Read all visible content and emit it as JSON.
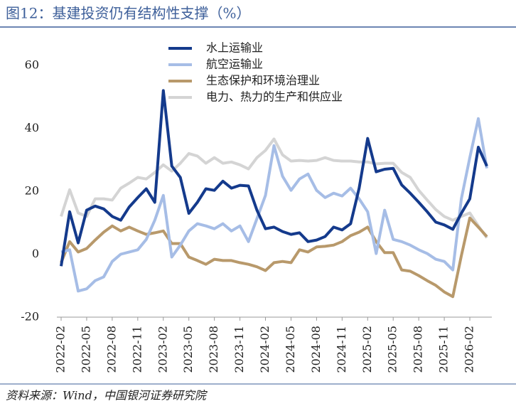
{
  "chart_data": {
    "type": "line",
    "title": "图12：基建投资仍有结构性支撑（%）",
    "source": "资料来源：Wind，中国银河证券研究院",
    "categories": [
      "2022-02",
      null,
      null,
      "2022-05",
      null,
      null,
      "2022-08",
      null,
      null,
      "2022-11",
      null,
      null,
      "2023-02",
      null,
      null,
      "2023-05",
      null,
      null,
      "2023-08",
      null,
      null,
      "2023-11",
      null,
      null,
      "2024-02",
      null,
      null,
      "2024-05",
      null,
      null,
      "2024-08",
      null,
      null,
      "2024-11",
      null,
      null,
      "2025-02",
      null,
      null,
      "2025-05",
      null,
      null,
      "2025-08",
      null,
      null,
      "2025-11",
      null,
      null,
      "2026-02",
      null,
      null
    ],
    "ylim": [
      -20,
      60
    ],
    "yticks": [
      -20,
      0,
      20,
      40,
      60
    ],
    "grid": false,
    "legend": "top",
    "series": [
      {
        "name": "水上运输业",
        "color": "#143a8c",
        "values": [
          -3.8,
          13.5,
          3.6,
          14,
          15.3,
          14.4,
          12,
          10.8,
          15,
          18,
          20.8,
          16.5,
          52,
          28,
          24.4,
          13,
          16.5,
          20.8,
          20.3,
          23.2,
          21,
          21.9,
          21.7,
          14,
          8.1,
          8.6,
          7.2,
          6.3,
          6.8,
          4,
          4.5,
          5.6,
          8.6,
          7.7,
          9.7,
          21,
          36.8,
          26.2,
          27,
          27.3,
          22,
          19.4,
          16.5,
          13.5,
          10.2,
          9.3,
          7.9,
          13,
          17.6,
          34,
          28
        ]
      },
      {
        "name": "航空运输业",
        "color": "#a6bde6",
        "values": [
          0.7,
          1.4,
          -11.7,
          -11,
          -8.4,
          -7.2,
          -2.3,
          0,
          0.7,
          1.4,
          4.7,
          10.8,
          18.7,
          -0.9,
          2.9,
          7.4,
          9.7,
          9,
          8.1,
          9.7,
          7.4,
          9,
          4,
          11.3,
          18.7,
          34.5,
          24.8,
          20.3,
          23.9,
          25.5,
          20.3,
          18,
          19.4,
          18.5,
          21,
          17.6,
          13.5,
          0.2,
          14,
          4.7,
          4,
          2.9,
          1.4,
          0.2,
          -1.6,
          -2.3,
          -5,
          17.6,
          30.7,
          43.1,
          27.3
        ]
      },
      {
        "name": "生态保护和环境治理业",
        "color": "#b8996b",
        "values": [
          -2.7,
          4,
          0.7,
          1.8,
          4.5,
          7,
          9,
          7.4,
          8.6,
          7.4,
          6.3,
          6.8,
          7.4,
          3.4,
          3.4,
          -0.9,
          -2,
          -3.2,
          -1.6,
          -2,
          -2,
          -2.7,
          -3.2,
          -4,
          -5.2,
          -2.7,
          -2.3,
          -2.7,
          1.4,
          0.7,
          2.3,
          2.5,
          2.9,
          4,
          5.9,
          7,
          8.6,
          4,
          0.5,
          0.5,
          -5,
          -5.4,
          -6.8,
          -8.4,
          -9.9,
          -12,
          -13.5,
          -0.5,
          11.5,
          8.6,
          5.6
        ]
      },
      {
        "name": "电力、热力的生产和供应业",
        "color": "#d4d4d4",
        "values": [
          12,
          20.5,
          13.1,
          12,
          17.6,
          17.6,
          17.2,
          21,
          22.6,
          24.4,
          23.9,
          26,
          28.4,
          26.4,
          28.9,
          32,
          31.2,
          28.9,
          30.7,
          28.9,
          29.3,
          28.4,
          27.1,
          30.7,
          33,
          36.6,
          31.6,
          29.6,
          29.8,
          29.6,
          29.8,
          30.7,
          29.8,
          29.6,
          29.6,
          29.3,
          29.3,
          28.7,
          28.9,
          28.9,
          26,
          24.4,
          20.3,
          17.2,
          14.2,
          12,
          10.8,
          12,
          13.1,
          9,
          5.2
        ]
      }
    ]
  }
}
